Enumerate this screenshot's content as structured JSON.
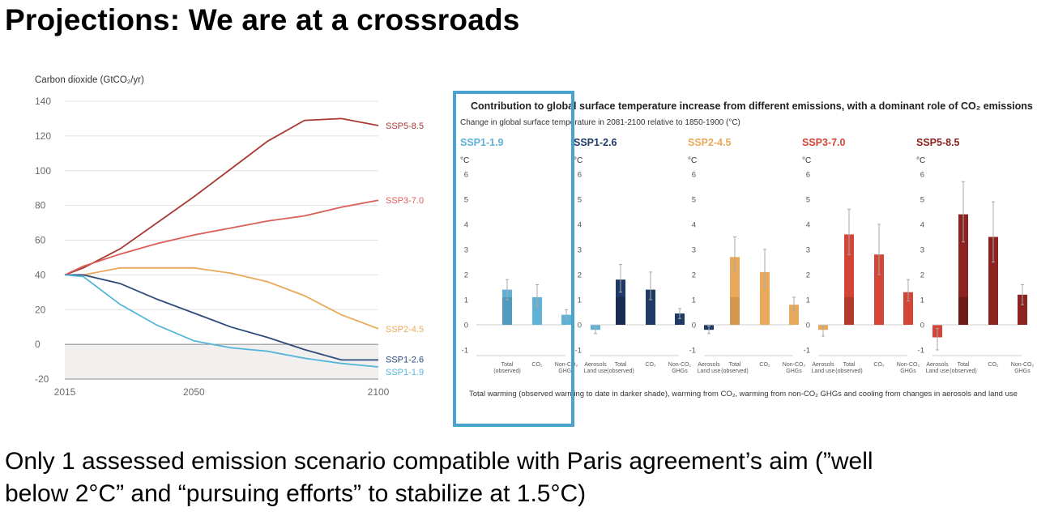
{
  "slide": {
    "title": "Projections: We are at a crossroads",
    "body_line1": "Only 1 assessed emission scenario compatible with Paris agreement’s aim (”well",
    "body_line2": "below 2°C” and “pursuing efforts” to stabilize at 1.5°C)"
  },
  "highlight": {
    "target": "SSP1-1.9",
    "color": "#4aa3cf"
  },
  "chart_data": [
    {
      "type": "line",
      "ylabel": "Carbon dioxide (GtCO₂/yr)",
      "ylim": [
        -20,
        140
      ],
      "yticks": [
        -20,
        0,
        20,
        40,
        60,
        80,
        100,
        120,
        140
      ],
      "xlim": [
        2015,
        2100
      ],
      "xticks": [
        2015,
        2050,
        2100
      ],
      "grid": true,
      "series": [
        {
          "name": "SSP5-8.5",
          "color": "#a83a32",
          "x": [
            2015,
            2020,
            2030,
            2040,
            2050,
            2060,
            2070,
            2080,
            2090,
            2100
          ],
          "values": [
            40,
            44,
            55,
            70,
            85,
            101,
            117,
            129,
            130,
            126
          ]
        },
        {
          "name": "SSP3-7.0",
          "color": "#d95f57",
          "x": [
            2015,
            2020,
            2030,
            2040,
            2050,
            2060,
            2070,
            2080,
            2090,
            2100
          ],
          "values": [
            40,
            45,
            52,
            58,
            63,
            67,
            71,
            74,
            79,
            83
          ]
        },
        {
          "name": "SSP2-4.5",
          "color": "#e9a95a",
          "x": [
            2015,
            2020,
            2030,
            2040,
            2050,
            2060,
            2070,
            2080,
            2090,
            2100
          ],
          "values": [
            40,
            40,
            44,
            44,
            44,
            41,
            36,
            28,
            17,
            9
          ]
        },
        {
          "name": "SSP1-2.6",
          "color": "#2c4a7a",
          "x": [
            2015,
            2020,
            2030,
            2040,
            2050,
            2060,
            2070,
            2080,
            2090,
            2100
          ],
          "values": [
            40,
            40,
            35,
            26,
            18,
            10,
            4,
            -3,
            -9,
            -9
          ]
        },
        {
          "name": "SSP1-1.9",
          "color": "#56b6d9",
          "x": [
            2015,
            2020,
            2030,
            2040,
            2050,
            2060,
            2070,
            2080,
            2090,
            2100
          ],
          "values": [
            40,
            39,
            23,
            11,
            2,
            -2,
            -4,
            -8,
            -11,
            -13
          ]
        }
      ]
    },
    {
      "type": "bar",
      "title": "Contribution to global surface temperature increase from different emissions, with a dominant role of CO₂ emissions",
      "subtitle": "Change in global surface temperature in 2081-2100 relative to 1850-1900 (°C)",
      "ylabel": "°C",
      "ylim": [
        -1,
        6
      ],
      "yticks": [
        -1,
        0,
        1,
        2,
        3,
        4,
        5,
        6
      ],
      "categories": [
        "Total (observed)",
        "CO₂",
        "Non-CO₂ GHGs",
        "Aerosols Land use"
      ],
      "observed_to_date": 1.1,
      "footnote": "Total warming (observed warming to date in darker shade), warming from CO₂, warming from non-CO₂ GHGs and cooling from changes in aerosols and land use",
      "panels": [
        {
          "name": "SSP1-1.9",
          "color": "#5fb2d6",
          "dark": "#3f7f9c",
          "values": [
            1.4,
            1.1,
            0.4,
            -0.2
          ],
          "err_low": [
            1.0,
            0.7,
            0.25,
            -0.35
          ],
          "err_high": [
            1.8,
            1.6,
            0.6,
            -0.1
          ]
        },
        {
          "name": "SSP1-2.6",
          "color": "#1f3a66",
          "dark": "#0f1f38",
          "values": [
            1.8,
            1.4,
            0.45,
            -0.2
          ],
          "err_low": [
            1.3,
            1.0,
            0.25,
            -0.35
          ],
          "err_high": [
            2.4,
            2.1,
            0.65,
            -0.05
          ]
        },
        {
          "name": "SSP2-4.5",
          "color": "#e9a95a",
          "dark": "#b9813f",
          "values": [
            2.7,
            2.1,
            0.8,
            -0.2
          ],
          "err_low": [
            2.1,
            1.5,
            0.55,
            -0.45
          ],
          "err_high": [
            3.5,
            3.0,
            1.1,
            -0.05
          ]
        },
        {
          "name": "SSP3-7.0",
          "color": "#d24537",
          "dark": "#8e2a22",
          "values": [
            3.6,
            2.8,
            1.3,
            -0.5
          ],
          "err_low": [
            2.8,
            2.0,
            0.95,
            -1.0
          ],
          "err_high": [
            4.6,
            4.0,
            1.8,
            -0.15
          ]
        },
        {
          "name": "SSP5-8.5",
          "color": "#8c2320",
          "dark": "#4a0f0d",
          "values": [
            4.4,
            3.5,
            1.2,
            -0.25
          ],
          "err_low": [
            3.3,
            2.5,
            0.8,
            -0.5
          ],
          "err_high": [
            5.7,
            4.9,
            1.6,
            0.0
          ]
        }
      ]
    }
  ]
}
